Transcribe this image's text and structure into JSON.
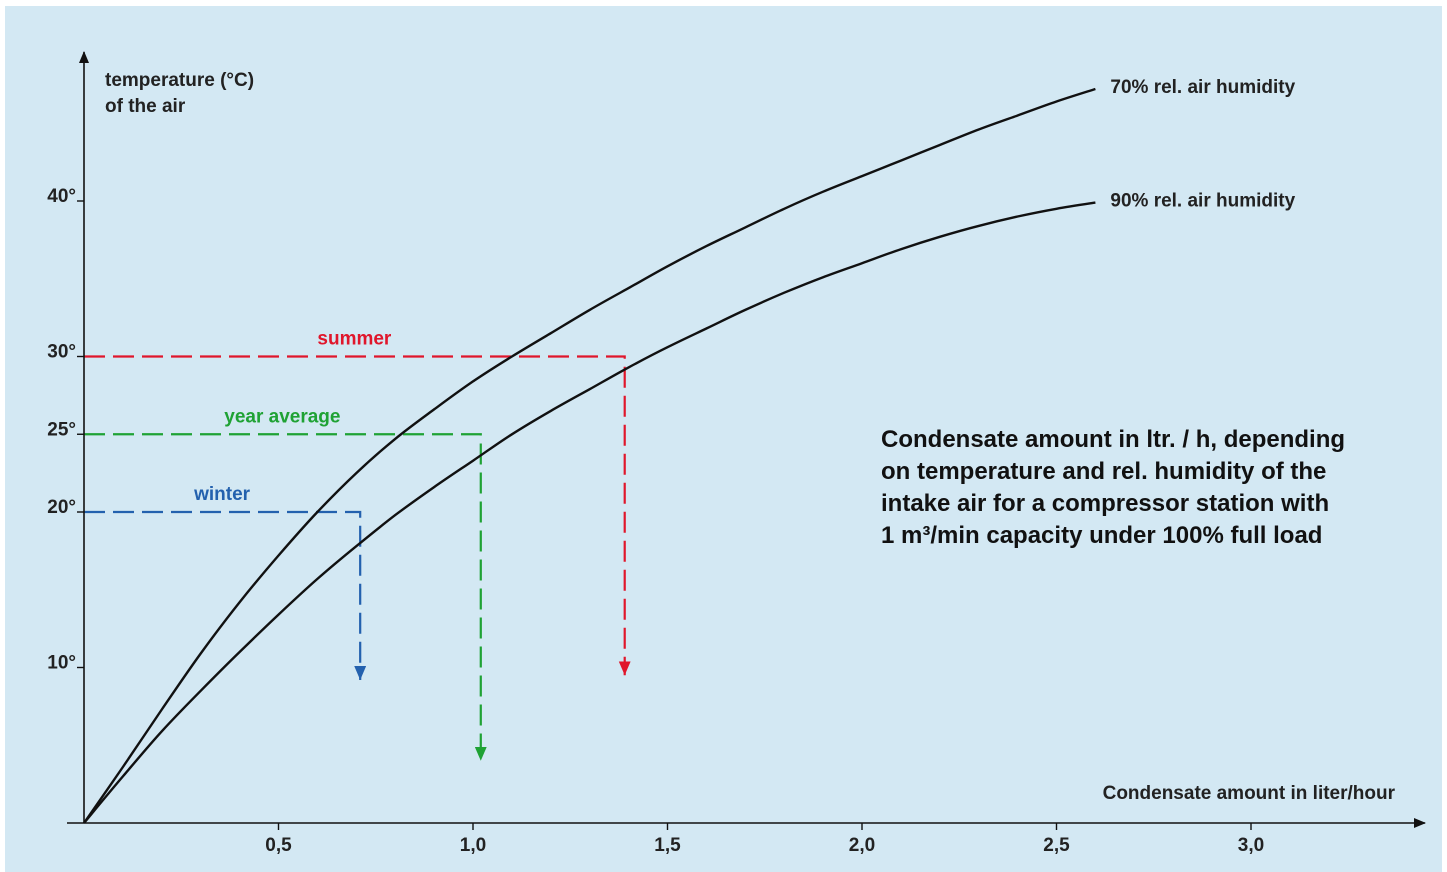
{
  "description": {
    "lines": [
      "Condensate amount in ltr. / h, depending",
      "on temperature and rel. humidity of the",
      "intake air for a compressor station with",
      "1 m³/min capacity under 100% full load"
    ]
  },
  "chart_data": {
    "type": "line",
    "title": "Condensate amount in ltr. / h, depending on temperature and rel. humidity of the intake air for a compressor station with 1 m³/min capacity under 100% full load",
    "xlabel": "Condensate amount in liter/hour",
    "ylabel_lines": [
      "temperature (°C)",
      "of the air"
    ],
    "xlim": [
      0,
      3.45
    ],
    "ylim": [
      0,
      50
    ],
    "x_ticks": [
      {
        "value": 0.5,
        "label": "0,5"
      },
      {
        "value": 1.0,
        "label": "1,0"
      },
      {
        "value": 1.5,
        "label": "1,5"
      },
      {
        "value": 2.0,
        "label": "2,0"
      },
      {
        "value": 2.5,
        "label": "2,5"
      },
      {
        "value": 3.0,
        "label": "3,0"
      }
    ],
    "y_ticks": [
      {
        "value": 10,
        "label": "10°"
      },
      {
        "value": 20,
        "label": "20°"
      },
      {
        "value": 25,
        "label": "25°"
      },
      {
        "value": 30,
        "label": "30°"
      },
      {
        "value": 40,
        "label": "40°"
      }
    ],
    "grid": false,
    "series": [
      {
        "name": "70% rel. air humidity",
        "color": "#111111",
        "points": [
          [
            0,
            0
          ],
          [
            0.1,
            3.6
          ],
          [
            0.2,
            7.3
          ],
          [
            0.3,
            10.9
          ],
          [
            0.4,
            14.2
          ],
          [
            0.5,
            17.2
          ],
          [
            0.6,
            20.0
          ],
          [
            0.7,
            22.5
          ],
          [
            0.8,
            24.7
          ],
          [
            0.9,
            26.6
          ],
          [
            1.0,
            28.4
          ],
          [
            1.1,
            30.0
          ],
          [
            1.2,
            31.5
          ],
          [
            1.3,
            33.0
          ],
          [
            1.4,
            34.4
          ],
          [
            1.5,
            35.8
          ],
          [
            1.6,
            37.1
          ],
          [
            1.7,
            38.3
          ],
          [
            1.8,
            39.5
          ],
          [
            1.9,
            40.6
          ],
          [
            2.0,
            41.6
          ],
          [
            2.1,
            42.6
          ],
          [
            2.2,
            43.6
          ],
          [
            2.3,
            44.6
          ],
          [
            2.4,
            45.5
          ],
          [
            2.5,
            46.4
          ],
          [
            2.6,
            47.2
          ]
        ]
      },
      {
        "name": "90% rel. air humidity",
        "color": "#111111",
        "points": [
          [
            0,
            0
          ],
          [
            0.1,
            3.0
          ],
          [
            0.2,
            5.9
          ],
          [
            0.3,
            8.5
          ],
          [
            0.4,
            11.0
          ],
          [
            0.5,
            13.4
          ],
          [
            0.6,
            15.7
          ],
          [
            0.7,
            17.8
          ],
          [
            0.8,
            19.8
          ],
          [
            0.9,
            21.6
          ],
          [
            1.0,
            23.3
          ],
          [
            1.1,
            25.0
          ],
          [
            1.2,
            26.5
          ],
          [
            1.3,
            27.9
          ],
          [
            1.4,
            29.3
          ],
          [
            1.5,
            30.6
          ],
          [
            1.6,
            31.8
          ],
          [
            1.7,
            33.0
          ],
          [
            1.8,
            34.1
          ],
          [
            1.9,
            35.1
          ],
          [
            2.0,
            36.0
          ],
          [
            2.1,
            36.9
          ],
          [
            2.2,
            37.7
          ],
          [
            2.3,
            38.4
          ],
          [
            2.4,
            39.0
          ],
          [
            2.5,
            39.5
          ],
          [
            2.6,
            39.9
          ]
        ]
      }
    ],
    "annotations": [
      {
        "label": "summer",
        "color": "#e0162b",
        "temperature": 30,
        "condensate": 1.39,
        "arrow_to": 9.5
      },
      {
        "label": "year average",
        "color": "#1fa234",
        "temperature": 25,
        "condensate": 1.02,
        "arrow_to": 4.0
      },
      {
        "label": "winter",
        "color": "#2361ae",
        "temperature": 20,
        "condensate": 0.71,
        "arrow_to": 9.2
      }
    ]
  }
}
